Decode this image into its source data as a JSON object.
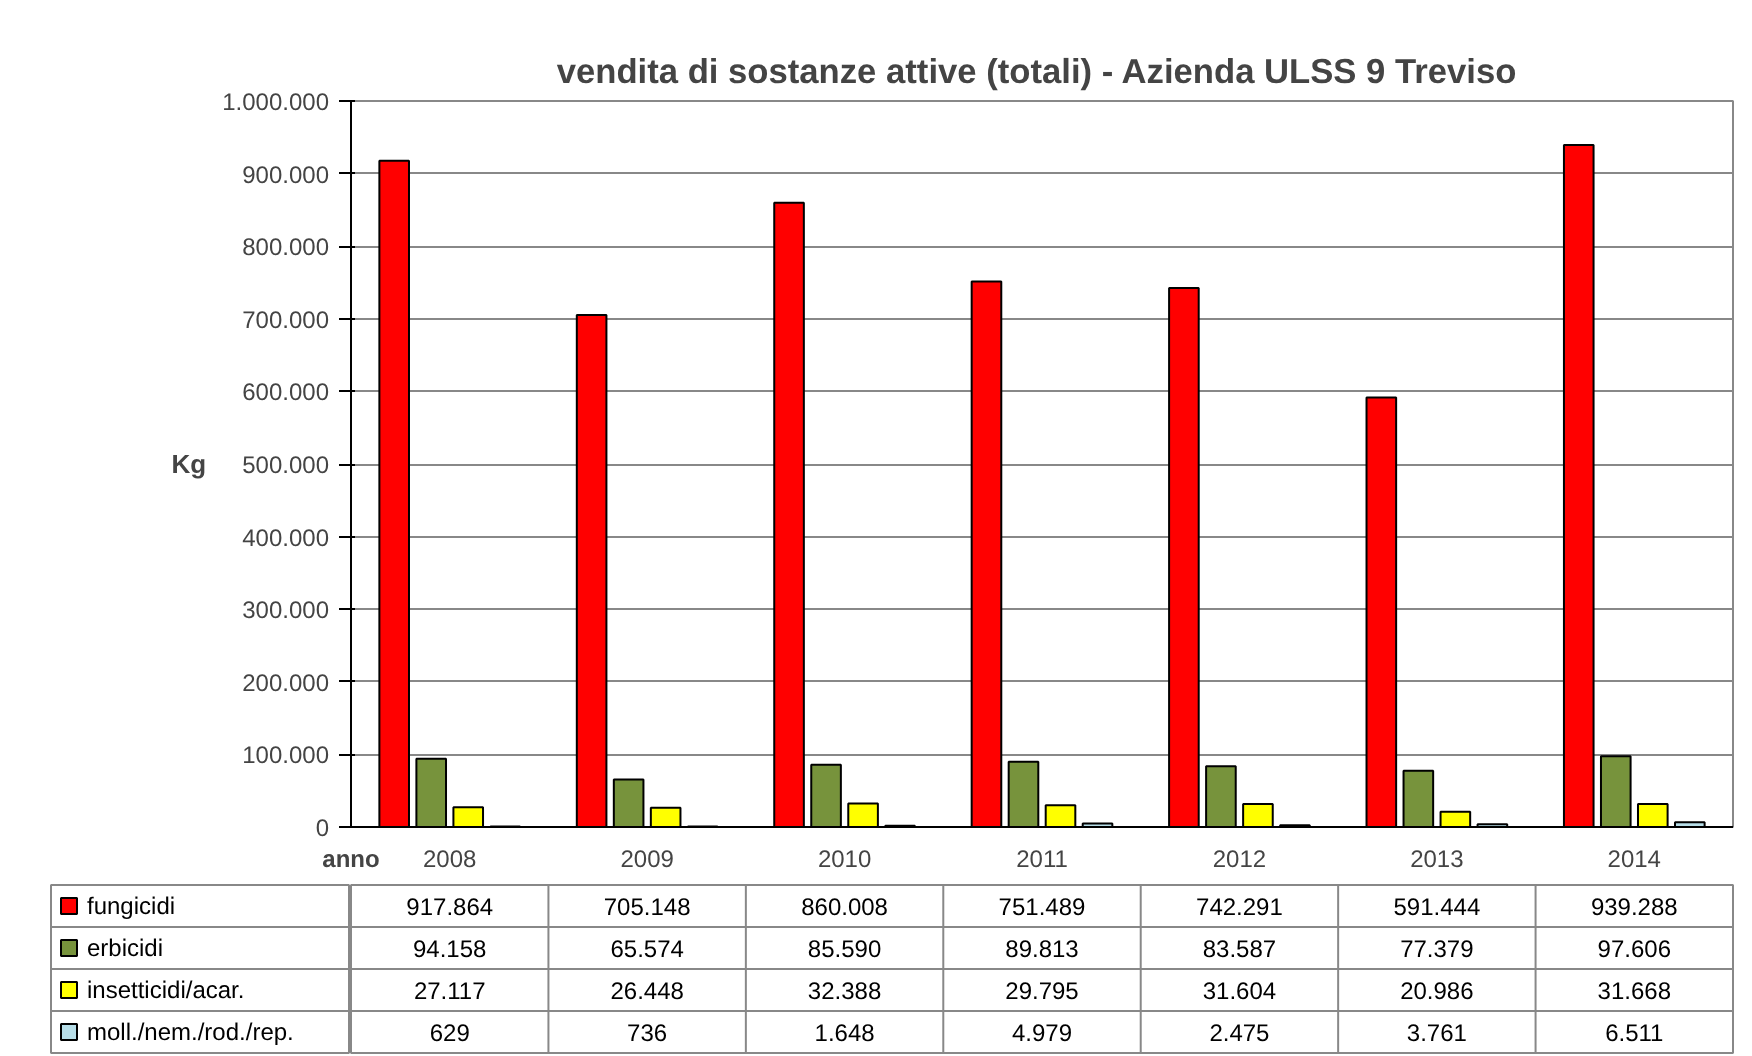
{
  "chart_data": {
    "type": "bar",
    "title": "vendita di sostanze attive (totali) - Azienda ULSS 9  Treviso",
    "xlabel": "anno",
    "ylabel": "Kg",
    "categories": [
      "2008",
      "2009",
      "2010",
      "2011",
      "2012",
      "2013",
      "2014"
    ],
    "series": [
      {
        "name": "fungicidi",
        "color": "#ff0000",
        "values": [
          917864,
          705148,
          860008,
          751489,
          742291,
          591444,
          939288
        ],
        "value_labels": [
          "917.864",
          "705.148",
          "860.008",
          "751.489",
          "742.291",
          "591.444",
          "939.288"
        ]
      },
      {
        "name": "erbicidi",
        "color": "#77933c",
        "values": [
          94158,
          65574,
          85590,
          89813,
          83587,
          77379,
          97606
        ],
        "value_labels": [
          "94.158",
          "65.574",
          "85.590",
          "89.813",
          "83.587",
          "77.379",
          "97.606"
        ]
      },
      {
        "name": "insetticidi/acar.",
        "color": "#ffff00",
        "values": [
          27117,
          26448,
          32388,
          29795,
          31604,
          20986,
          31668
        ],
        "value_labels": [
          "27.117",
          "26.448",
          "32.388",
          "29.795",
          "31.604",
          "20.986",
          "31.668"
        ]
      },
      {
        "name": "moll./nem./rod./rep.",
        "color": "#b7dee8",
        "values": [
          629,
          736,
          1648,
          4979,
          2475,
          3761,
          6511
        ],
        "value_labels": [
          "629",
          "736",
          "1.648",
          "4.979",
          "2.475",
          "3.761",
          "6.511"
        ]
      }
    ],
    "ylim": [
      0,
      1000000
    ],
    "yticks": [
      {
        "value": 0,
        "label": "0"
      },
      {
        "value": 100000,
        "label": "100.000"
      },
      {
        "value": 200000,
        "label": "200.000"
      },
      {
        "value": 300000,
        "label": "300.000"
      },
      {
        "value": 400000,
        "label": "400.000"
      },
      {
        "value": 500000,
        "label": "500.000"
      },
      {
        "value": 600000,
        "label": "600.000"
      },
      {
        "value": 700000,
        "label": "700.000"
      },
      {
        "value": 800000,
        "label": "800.000"
      },
      {
        "value": 900000,
        "label": "900.000"
      },
      {
        "value": 1000000,
        "label": "1.000.000"
      }
    ],
    "grid": "y",
    "legend": "bottom"
  }
}
